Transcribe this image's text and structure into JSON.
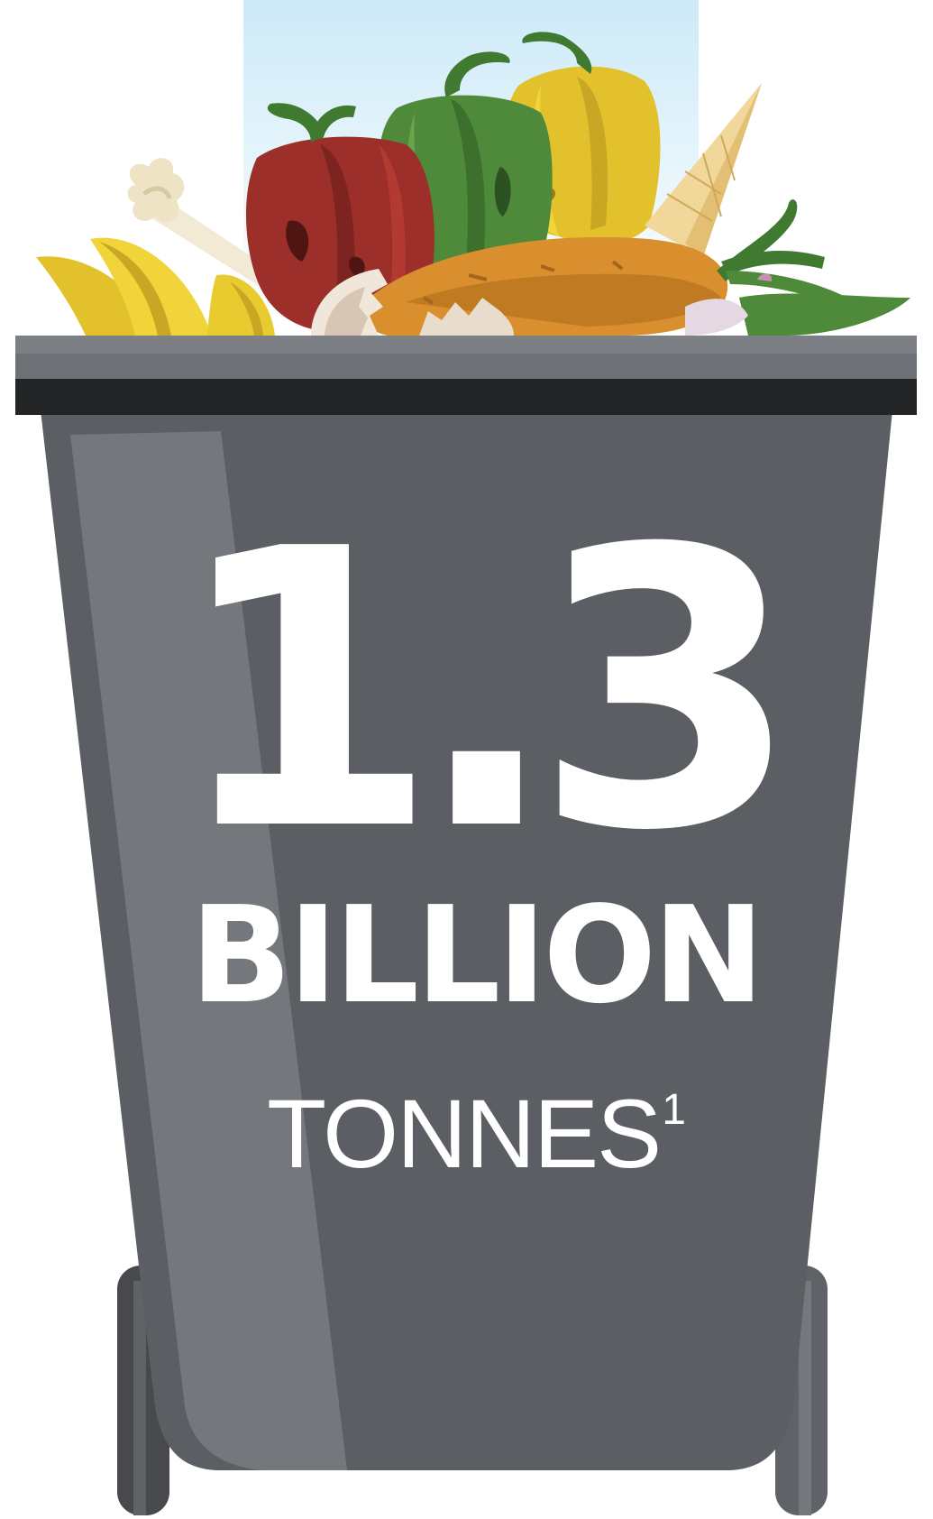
{
  "statistic": {
    "value": "1.3",
    "scale": "BILLION",
    "unit": "TONNES",
    "footnote_marker": "1"
  },
  "illustration": {
    "subject": "overflowing-food-waste-bin",
    "icons": [
      "waste-bin-icon",
      "red-pepper-icon",
      "green-pepper-icon",
      "yellow-pepper-icon",
      "ice-cream-cone-icon",
      "carrot-icon",
      "bone-icon",
      "banana-peel-icon",
      "eggshell-icon",
      "leaf-icon"
    ],
    "colors": {
      "bin_body": "#5b5e62",
      "bin_highlight": "#74787c",
      "bin_rim": "#6e7175",
      "bin_rim_band": "#222426",
      "sky": "#dff1fb",
      "red_pepper": "#9c2f2a",
      "green_pepper": "#4e8a3a",
      "yellow_pepper": "#e3c12d",
      "carrot": "#d98f2e",
      "banana": "#e8cc2f",
      "text": "#ffffff"
    }
  }
}
